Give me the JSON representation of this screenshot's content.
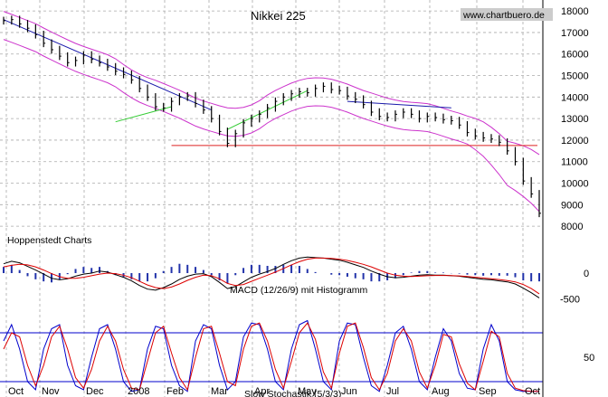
{
  "chart_data": [
    {
      "type": "line",
      "title": "Nikkei 225",
      "watermark": "www.chartbuero.de",
      "annotation": "Hoppenstedt Charts",
      "x_ticks": [
        "Oct",
        "Nov",
        "Dec",
        "2008",
        "Feb",
        "Mar",
        "Apr",
        "May",
        "Jun",
        "Jul",
        "Aug",
        "Sep",
        "Oct"
      ],
      "y_ticks": [
        8000,
        9000,
        10000,
        11000,
        12000,
        13000,
        14000,
        15000,
        16000,
        17000,
        18000
      ],
      "ylim": [
        7500,
        18300
      ],
      "grid": true,
      "support_level": 11750,
      "series": [
        {
          "color": "#000000",
          "values": [
            17550,
            17600,
            17400,
            17200,
            16900,
            16500,
            16200,
            15900,
            15600,
            15700,
            15950,
            15750,
            15600,
            15400,
            15200,
            15050,
            14800,
            14400,
            14000,
            13550,
            13500,
            13800,
            14000,
            14050,
            13700,
            13400,
            13000,
            12400,
            11850,
            12300,
            12800,
            13000,
            13200,
            13500,
            13800,
            14000,
            14150,
            14250,
            14200,
            14400,
            14500,
            14350,
            14300,
            14050,
            13900,
            13650,
            13300,
            13100,
            13050,
            13200,
            13300,
            13200,
            13000,
            13100,
            13050,
            12950,
            12900,
            12700,
            12350,
            12200,
            12100,
            12050,
            11900,
            11500,
            11000,
            10100,
            9500,
            8600
          ]
        }
      ],
      "bands_color": "#cc33cc",
      "trendlines_color": "#1a1aaa",
      "uptrend_color": "#33cc33",
      "support_color": "#dd2222"
    },
    {
      "type": "line",
      "title": "MACD (12/26/9) mit Histogramm",
      "y_ticks": [
        0,
        -500
      ],
      "ylim": [
        -700,
        350
      ],
      "series": [
        {
          "color": "#000000",
          "values": [
            180,
            230,
            200,
            130,
            60,
            -20,
            -100,
            -130,
            -110,
            -60,
            -20,
            0,
            40,
            20,
            -30,
            -80,
            -150,
            -240,
            -310,
            -330,
            -280,
            -210,
            -120,
            -60,
            -20,
            -10,
            -70,
            -180,
            -300,
            -260,
            -170,
            -80,
            -20,
            30,
            90,
            170,
            240,
            290,
            310,
            300,
            290,
            270,
            250,
            210,
            160,
            110,
            40,
            -20,
            -70,
            -90,
            -80,
            -60,
            -40,
            -30,
            -40,
            -40,
            -50,
            -60,
            -80,
            -100,
            -120,
            -130,
            -150,
            -170,
            -210,
            -290,
            -380,
            -480
          ]
        },
        {
          "color": "#dd0000",
          "values": [
            120,
            150,
            170,
            160,
            120,
            60,
            -10,
            -70,
            -100,
            -100,
            -80,
            -50,
            -20,
            0,
            -10,
            -40,
            -90,
            -160,
            -230,
            -280,
            -300,
            -270,
            -210,
            -140,
            -80,
            -40,
            -50,
            -110,
            -200,
            -240,
            -220,
            -160,
            -100,
            -40,
            20,
            90,
            160,
            220,
            270,
            290,
            290,
            285,
            270,
            245,
            210,
            170,
            120,
            60,
            0,
            -40,
            -60,
            -65,
            -60,
            -50,
            -45,
            -45,
            -48,
            -55,
            -65,
            -80,
            -95,
            -110,
            -125,
            -145,
            -170,
            -220,
            -300,
            -400
          ]
        }
      ]
    },
    {
      "type": "line",
      "title": "Slow Stochastik (5/3/3)",
      "y_ticks": [
        50
      ],
      "ylim": [
        0,
        100
      ],
      "series": [
        {
          "color": "#0000cc",
          "values": [
            70,
            90,
            60,
            20,
            10,
            60,
            85,
            90,
            40,
            15,
            10,
            50,
            85,
            90,
            60,
            20,
            8,
            10,
            60,
            88,
            85,
            40,
            15,
            8,
            70,
            90,
            85,
            40,
            10,
            20,
            75,
            92,
            90,
            60,
            20,
            10,
            60,
            90,
            95,
            60,
            20,
            10,
            70,
            92,
            90,
            50,
            15,
            8,
            40,
            80,
            88,
            60,
            20,
            10,
            50,
            85,
            70,
            30,
            12,
            10,
            60,
            90,
            70,
            20,
            10,
            8,
            8,
            8
          ]
        },
        {
          "color": "#dd0000",
          "values": [
            60,
            80,
            75,
            40,
            15,
            40,
            75,
            88,
            60,
            25,
            12,
            35,
            70,
            88,
            70,
            35,
            12,
            10,
            45,
            80,
            88,
            55,
            25,
            10,
            50,
            85,
            88,
            55,
            20,
            15,
            60,
            88,
            92,
            70,
            35,
            12,
            45,
            80,
            92,
            72,
            32,
            12,
            55,
            88,
            92,
            62,
            25,
            10,
            30,
            70,
            85,
            70,
            32,
            12,
            40,
            78,
            75,
            42,
            18,
            10,
            45,
            82,
            75,
            30,
            12,
            9,
            8,
            8
          ]
        }
      ],
      "reference_lines": [
        80,
        20
      ]
    }
  ]
}
